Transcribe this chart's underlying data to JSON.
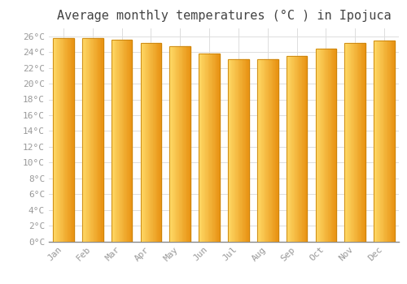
{
  "title": "Average monthly temperatures (°C ) in Ipojuca",
  "months": [
    "Jan",
    "Feb",
    "Mar",
    "Apr",
    "May",
    "Jun",
    "Jul",
    "Aug",
    "Sep",
    "Oct",
    "Nov",
    "Dec"
  ],
  "values": [
    25.8,
    25.8,
    25.6,
    25.2,
    24.7,
    23.8,
    23.1,
    23.1,
    23.5,
    24.4,
    25.1,
    25.5
  ],
  "bar_color_left": "#FFD966",
  "bar_color_right": "#E89010",
  "bar_edge_color": "#C8820A",
  "background_color": "#FFFFFF",
  "grid_color": "#DDDDDD",
  "ylim": [
    0,
    27
  ],
  "ytick_step": 2,
  "title_fontsize": 11,
  "tick_fontsize": 8,
  "tick_font_color": "#999999"
}
